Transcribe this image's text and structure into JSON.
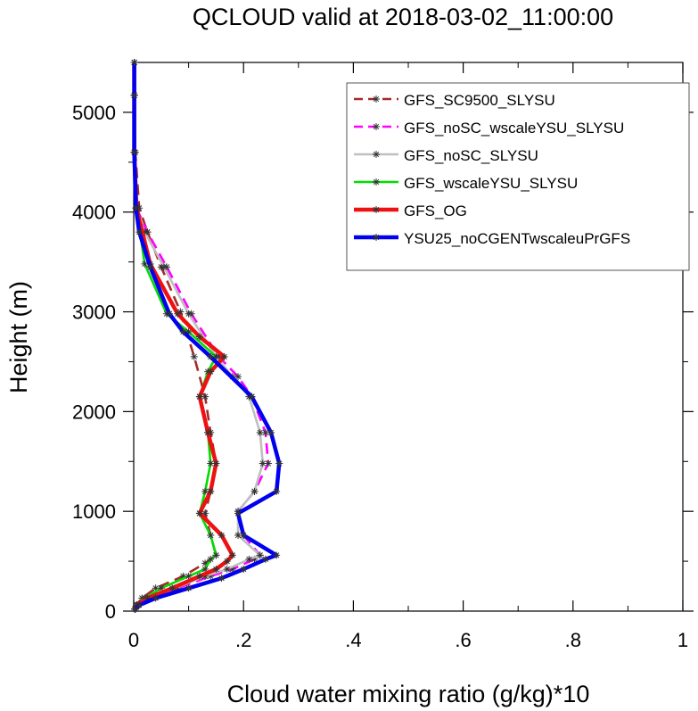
{
  "chart_data": {
    "type": "line",
    "title": "QCLOUD valid at 2018-03-02_11:00:00",
    "xlabel": "Cloud water mixing ratio (g/kg)*10",
    "ylabel": "Height (m)",
    "xlim": [
      0,
      1
    ],
    "ylim": [
      0,
      5500
    ],
    "xticks": [
      {
        "value": 0,
        "label": "0"
      },
      {
        "value": 0.2,
        "label": ".2"
      },
      {
        "value": 0.4,
        "label": ".4"
      },
      {
        "value": 0.6,
        "label": ".6"
      },
      {
        "value": 0.8,
        "label": ".8"
      },
      {
        "value": 1,
        "label": "1"
      }
    ],
    "yticks": [
      {
        "value": 0,
        "label": "0"
      },
      {
        "value": 1000,
        "label": "1000"
      },
      {
        "value": 2000,
        "label": "2000"
      },
      {
        "value": 3000,
        "label": "3000"
      },
      {
        "value": 4000,
        "label": "4000"
      },
      {
        "value": 5000,
        "label": "5000"
      }
    ],
    "grid": false,
    "legend_position": "top-right",
    "series": [
      {
        "name": "GFS_SC9500_SLYSU",
        "color": "#a52a2a",
        "dash": "dashed",
        "points": [
          [
            0.002,
            20
          ],
          [
            0.005,
            60
          ],
          [
            0.015,
            130
          ],
          [
            0.04,
            230
          ],
          [
            0.09,
            350
          ],
          [
            0.13,
            480
          ],
          [
            0.15,
            560
          ],
          [
            0.14,
            760
          ],
          [
            0.13,
            980
          ],
          [
            0.14,
            1200
          ],
          [
            0.15,
            1480
          ],
          [
            0.14,
            1790
          ],
          [
            0.13,
            2150
          ],
          [
            0.11,
            2550
          ],
          [
            0.085,
            3000
          ],
          [
            0.05,
            3450
          ],
          [
            0.025,
            3800
          ],
          [
            0.01,
            4040
          ],
          [
            0.003,
            4600
          ],
          [
            0.001,
            5170
          ],
          [
            0.001,
            5500
          ]
        ]
      },
      {
        "name": "GFS_noSC_wscaleYSU_SLYSU",
        "color": "#ff00ff",
        "dash": "dashed",
        "points": [
          [
            0.003,
            20
          ],
          [
            0.008,
            60
          ],
          [
            0.03,
            130
          ],
          [
            0.08,
            230
          ],
          [
            0.14,
            350
          ],
          [
            0.18,
            420
          ],
          [
            0.22,
            520
          ],
          [
            0.23,
            560
          ],
          [
            0.2,
            760
          ],
          [
            0.19,
            1000
          ],
          [
            0.22,
            1200
          ],
          [
            0.245,
            1480
          ],
          [
            0.24,
            1790
          ],
          [
            0.215,
            2150
          ],
          [
            0.19,
            2350
          ],
          [
            0.155,
            2550
          ],
          [
            0.105,
            2980
          ],
          [
            0.06,
            3450
          ],
          [
            0.025,
            3800
          ],
          [
            0.005,
            4040
          ],
          [
            0.001,
            4600
          ],
          [
            0.001,
            5170
          ],
          [
            0.001,
            5500
          ]
        ]
      },
      {
        "name": "GFS_noSC_SLYSU",
        "color": "#bfbfbf",
        "dash": "solid",
        "points": [
          [
            0.003,
            20
          ],
          [
            0.008,
            60
          ],
          [
            0.03,
            130
          ],
          [
            0.075,
            230
          ],
          [
            0.13,
            350
          ],
          [
            0.17,
            420
          ],
          [
            0.21,
            520
          ],
          [
            0.23,
            560
          ],
          [
            0.19,
            760
          ],
          [
            0.19,
            1000
          ],
          [
            0.22,
            1200
          ],
          [
            0.235,
            1480
          ],
          [
            0.23,
            1790
          ],
          [
            0.21,
            2150
          ],
          [
            0.18,
            2350
          ],
          [
            0.15,
            2550
          ],
          [
            0.1,
            2980
          ],
          [
            0.055,
            3450
          ],
          [
            0.02,
            3800
          ],
          [
            0.004,
            4040
          ],
          [
            0.001,
            4600
          ],
          [
            0.001,
            5170
          ],
          [
            0.001,
            5500
          ]
        ]
      },
      {
        "name": "GFS_wscaleYSU_SLYSU",
        "color": "#00dd00",
        "dash": "solid",
        "points": [
          [
            0.002,
            20
          ],
          [
            0.006,
            60
          ],
          [
            0.02,
            130
          ],
          [
            0.05,
            230
          ],
          [
            0.1,
            350
          ],
          [
            0.13,
            420
          ],
          [
            0.14,
            520
          ],
          [
            0.15,
            560
          ],
          [
            0.14,
            760
          ],
          [
            0.12,
            980
          ],
          [
            0.13,
            1200
          ],
          [
            0.14,
            1480
          ],
          [
            0.135,
            1790
          ],
          [
            0.12,
            2150
          ],
          [
            0.135,
            2400
          ],
          [
            0.15,
            2550
          ],
          [
            0.1,
            2800
          ],
          [
            0.06,
            2980
          ],
          [
            0.02,
            3480
          ],
          [
            0.005,
            4040
          ],
          [
            0.001,
            4600
          ],
          [
            0.001,
            5170
          ],
          [
            0.001,
            5500
          ]
        ]
      },
      {
        "name": "GFS_OG",
        "color": "#ee1111",
        "dash": "solid",
        "points": [
          [
            0.002,
            20
          ],
          [
            0.006,
            60
          ],
          [
            0.025,
            130
          ],
          [
            0.07,
            230
          ],
          [
            0.12,
            350
          ],
          [
            0.15,
            420
          ],
          [
            0.17,
            500
          ],
          [
            0.18,
            560
          ],
          [
            0.16,
            760
          ],
          [
            0.12,
            980
          ],
          [
            0.14,
            1200
          ],
          [
            0.15,
            1480
          ],
          [
            0.135,
            1790
          ],
          [
            0.12,
            2150
          ],
          [
            0.14,
            2400
          ],
          [
            0.165,
            2550
          ],
          [
            0.12,
            2750
          ],
          [
            0.08,
            2980
          ],
          [
            0.03,
            3480
          ],
          [
            0.005,
            4040
          ],
          [
            0.001,
            4600
          ],
          [
            0.001,
            5170
          ],
          [
            0.001,
            5500
          ]
        ]
      },
      {
        "name": "YSU25_noCGENTwscaleuPrGFS",
        "color": "#0000ee",
        "dash": "solid",
        "points": [
          [
            0.003,
            20
          ],
          [
            0.01,
            60
          ],
          [
            0.04,
            130
          ],
          [
            0.1,
            230
          ],
          [
            0.16,
            330
          ],
          [
            0.2,
            420
          ],
          [
            0.24,
            520
          ],
          [
            0.26,
            560
          ],
          [
            0.2,
            760
          ],
          [
            0.19,
            980
          ],
          [
            0.26,
            1200
          ],
          [
            0.265,
            1480
          ],
          [
            0.25,
            1790
          ],
          [
            0.215,
            2150
          ],
          [
            0.14,
            2550
          ],
          [
            0.09,
            2800
          ],
          [
            0.065,
            2980
          ],
          [
            0.03,
            3450
          ],
          [
            0.01,
            3800
          ],
          [
            0.004,
            4040
          ],
          [
            0.001,
            4600
          ],
          [
            0.001,
            5170
          ],
          [
            0.001,
            5500
          ]
        ]
      }
    ]
  }
}
